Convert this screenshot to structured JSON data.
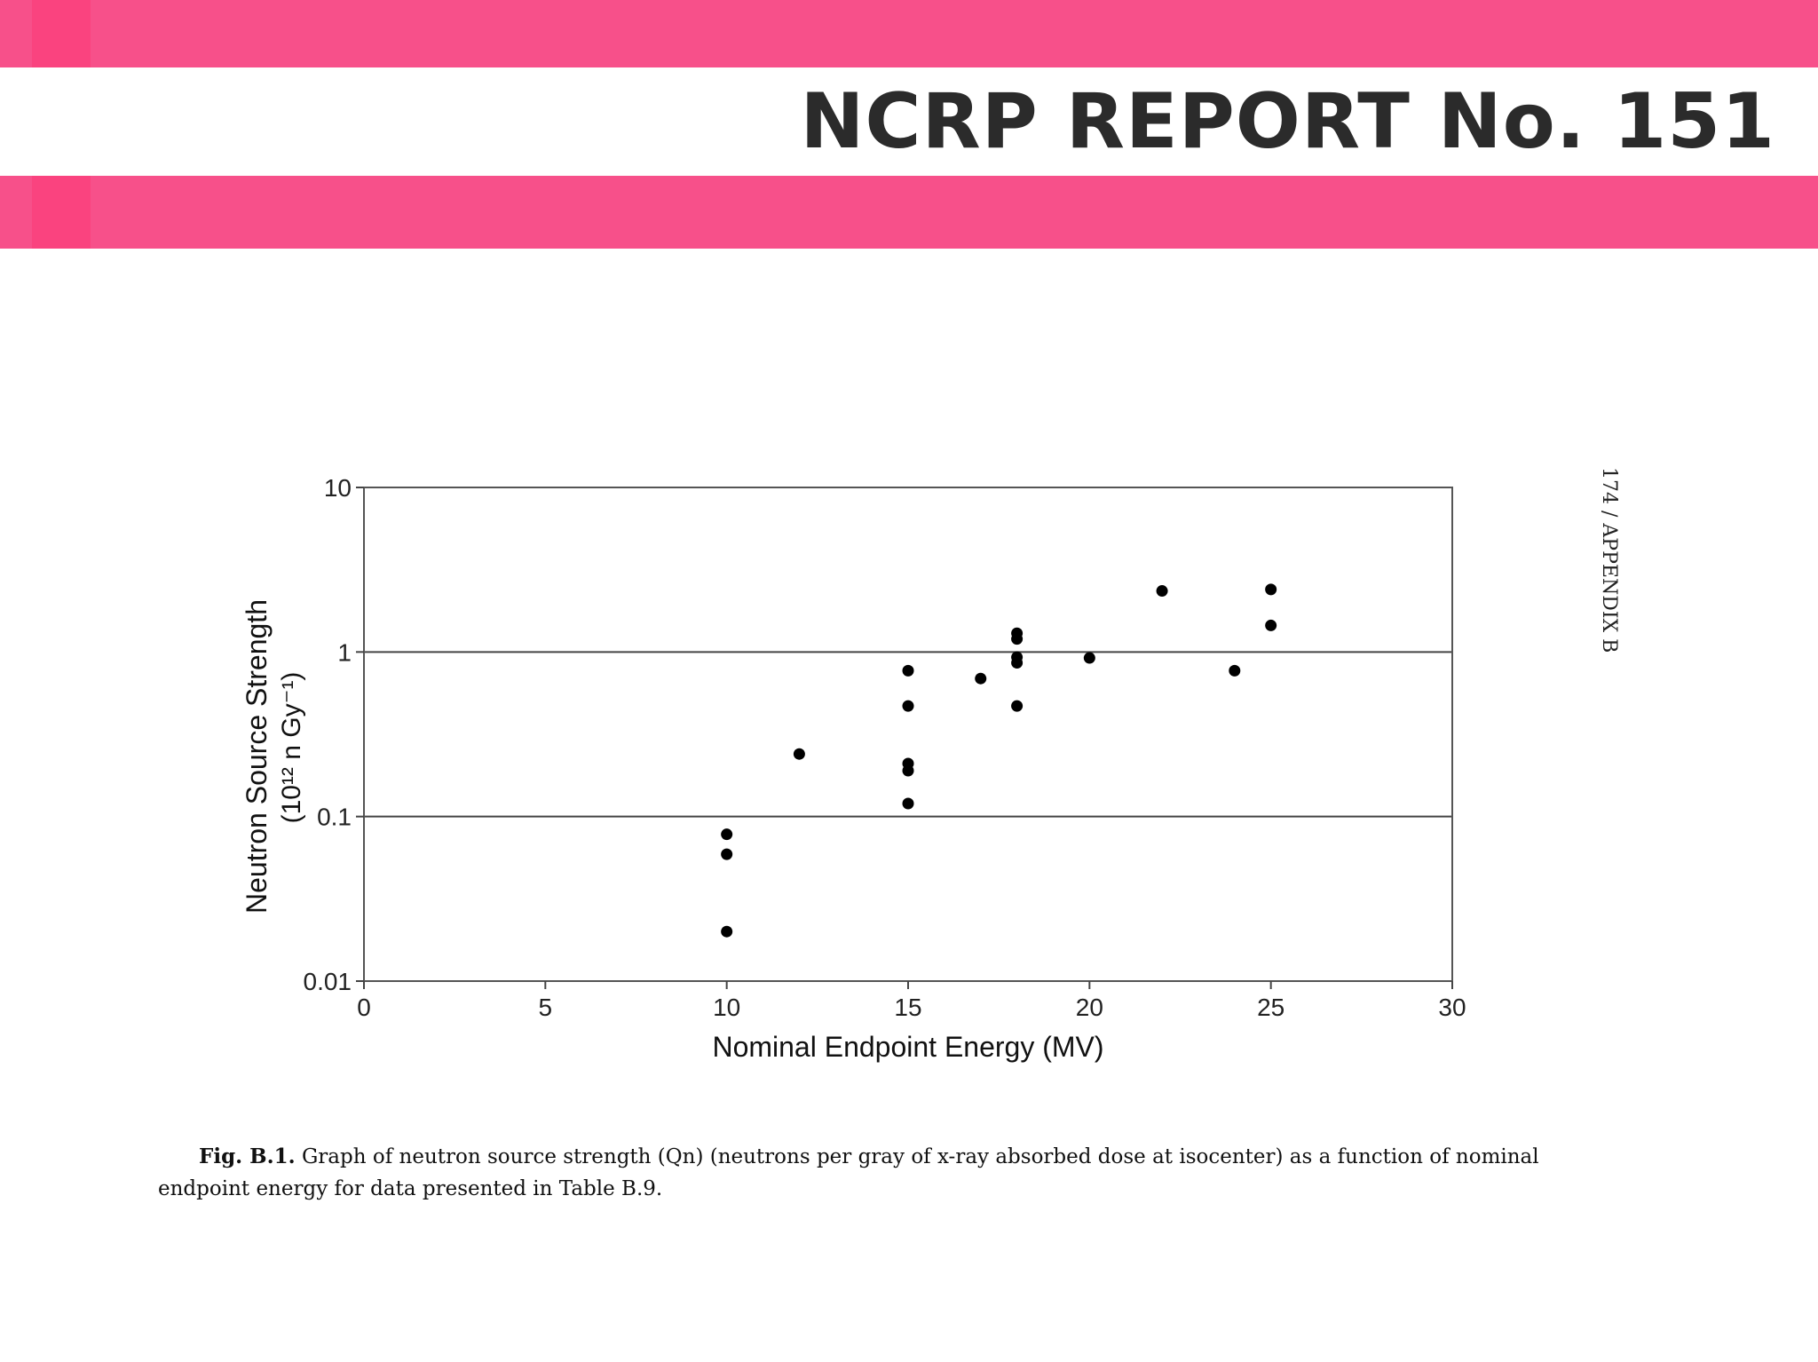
{
  "header": {
    "title": "NCRP REPORT No. 151",
    "band_color": "#f7508a"
  },
  "page_label": "174  /  APPENDIX B",
  "caption": {
    "label": "Fig. B.1.",
    "text": "Graph of neutron source strength (Qn) (neutrons per gray of x-ray absorbed dose at isocenter) as a function of nominal endpoint energy for data presented in Table B.9."
  },
  "chart_data": {
    "type": "scatter",
    "title": "",
    "xlabel": "Nominal Endpoint Energy (MV)",
    "ylabel": "Neutron Source Strength",
    "ylabel_units": "(10¹² n Gy⁻¹)",
    "xlim": [
      0,
      30
    ],
    "ylim": [
      0.01,
      10
    ],
    "yscale": "log",
    "x_ticks": [
      0,
      5,
      10,
      15,
      20,
      25,
      30
    ],
    "x_tick_labels": [
      "0",
      "5",
      "10",
      "15",
      "20",
      "25",
      "30"
    ],
    "y_ticks": [
      0.01,
      0.1,
      1,
      10
    ],
    "y_tick_labels": [
      "0.01",
      "0.1",
      "1",
      "10"
    ],
    "grid": "horizontal",
    "legend": "none",
    "marker_color": "#000000",
    "points": [
      {
        "x": 10,
        "y": 0.078
      },
      {
        "x": 10,
        "y": 0.059
      },
      {
        "x": 10,
        "y": 0.02
      },
      {
        "x": 12,
        "y": 0.24
      },
      {
        "x": 15,
        "y": 0.77
      },
      {
        "x": 15,
        "y": 0.47
      },
      {
        "x": 15,
        "y": 0.21
      },
      {
        "x": 15,
        "y": 0.19
      },
      {
        "x": 15,
        "y": 0.12
      },
      {
        "x": 17,
        "y": 0.69
      },
      {
        "x": 18,
        "y": 1.3
      },
      {
        "x": 18,
        "y": 1.2
      },
      {
        "x": 18,
        "y": 0.93
      },
      {
        "x": 18,
        "y": 0.86
      },
      {
        "x": 18,
        "y": 0.47
      },
      {
        "x": 20,
        "y": 0.92
      },
      {
        "x": 22,
        "y": 2.35
      },
      {
        "x": 24,
        "y": 0.77
      },
      {
        "x": 25,
        "y": 2.4
      },
      {
        "x": 25,
        "y": 1.45
      }
    ]
  }
}
